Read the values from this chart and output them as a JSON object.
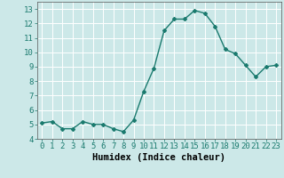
{
  "x": [
    0,
    1,
    2,
    3,
    4,
    5,
    6,
    7,
    8,
    9,
    10,
    11,
    12,
    13,
    14,
    15,
    16,
    17,
    18,
    19,
    20,
    21,
    22,
    23
  ],
  "y": [
    5.1,
    5.2,
    4.7,
    4.7,
    5.2,
    5.0,
    5.0,
    4.7,
    4.5,
    5.3,
    7.3,
    8.9,
    11.5,
    12.3,
    12.3,
    12.9,
    12.7,
    11.8,
    10.2,
    9.9,
    9.1,
    8.3,
    9.0,
    9.1
  ],
  "line_color": "#1a7a6e",
  "marker": "D",
  "marker_size": 2,
  "bg_color": "#cce8e8",
  "grid_color": "#ffffff",
  "xlabel": "Humidex (Indice chaleur)",
  "xlim": [
    -0.5,
    23.5
  ],
  "ylim": [
    4.0,
    13.5
  ],
  "yticks": [
    4,
    5,
    6,
    7,
    8,
    9,
    10,
    11,
    12,
    13
  ],
  "xtick_labels": [
    "0",
    "1",
    "2",
    "3",
    "4",
    "5",
    "6",
    "7",
    "8",
    "9",
    "10",
    "11",
    "12",
    "13",
    "14",
    "15",
    "16",
    "17",
    "18",
    "19",
    "20",
    "21",
    "22",
    "23"
  ],
  "xlabel_fontsize": 7.5,
  "tick_fontsize": 6.5,
  "line_width": 1.0
}
